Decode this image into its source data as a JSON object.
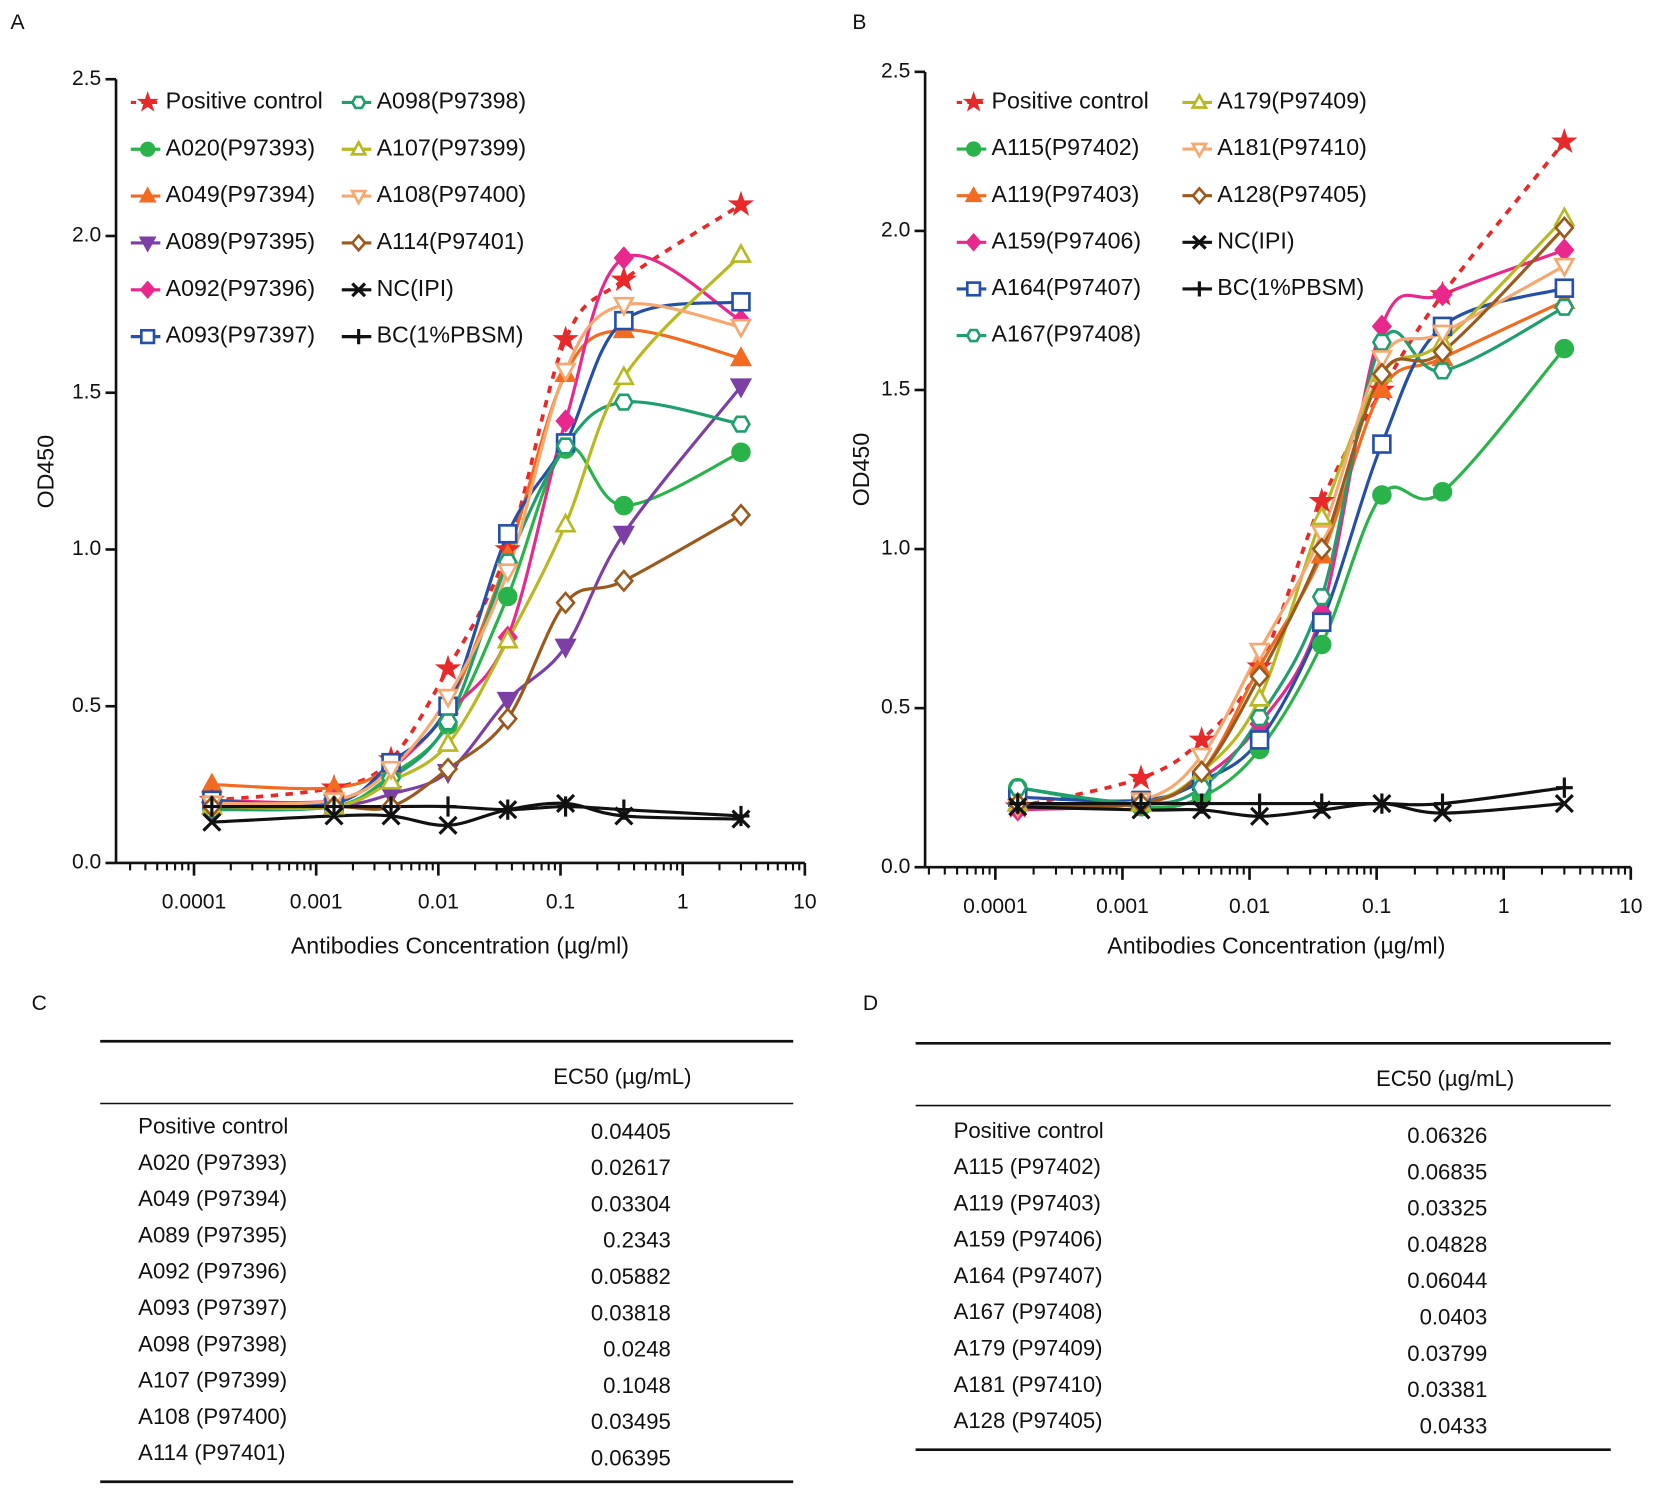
{
  "chart_data": [
    {
      "panel": "A",
      "type": "scatter",
      "xlabel": "Antibodies Concentration (µg/ml)",
      "ylabel": "OD450",
      "xscale": "log",
      "xlim": [
        2.3e-05,
        10
      ],
      "xticks": [
        0.0001,
        0.001,
        0.01,
        0.1,
        1,
        10
      ],
      "ylim": [
        0,
        2.5
      ],
      "yticks": [
        {
          "value": 0,
          "label": "0.0"
        },
        0.5,
        {
          "value": 1,
          "label": "1.0"
        },
        1.5,
        {
          "value": 2,
          "label": "2.0"
        },
        2.5
      ],
      "x": [
        0.00014,
        0.0014,
        0.0041,
        0.012,
        0.037,
        0.11,
        0.33,
        3
      ],
      "series": [
        {
          "name": "Positive control",
          "color": "#e8292a",
          "marker": "star",
          "filled": true,
          "dash": true,
          "values": [
            0.2,
            0.24,
            0.33,
            0.62,
            1.0,
            1.67,
            1.86,
            2.1
          ]
        },
        {
          "name": "A020(P97393)",
          "color": "#2ab34a",
          "marker": "circle",
          "filled": true,
          "values": [
            0.18,
            0.18,
            0.28,
            0.44,
            0.85,
            1.32,
            1.14,
            1.31
          ]
        },
        {
          "name": "A049(P97394)",
          "color": "#f26b21",
          "marker": "triangle",
          "filled": true,
          "values": [
            0.25,
            0.24,
            0.31,
            0.5,
            0.98,
            1.56,
            1.7,
            1.61
          ]
        },
        {
          "name": "A089(P97395)",
          "color": "#7b3fa5",
          "marker": "triangle-down",
          "filled": true,
          "values": [
            0.17,
            0.18,
            0.22,
            0.29,
            0.52,
            0.69,
            1.05,
            1.52
          ]
        },
        {
          "name": "A092(P97396)",
          "color": "#e8288c",
          "marker": "diamond",
          "filled": true,
          "values": [
            0.2,
            0.2,
            0.3,
            0.48,
            0.72,
            1.41,
            1.93,
            1.73
          ]
        },
        {
          "name": "A093(P97397)",
          "color": "#2450a8",
          "marker": "square",
          "filled": false,
          "values": [
            0.2,
            0.19,
            0.32,
            0.5,
            1.05,
            1.34,
            1.73,
            1.79
          ]
        },
        {
          "name": "A098(P97398)",
          "color": "#1f9e6e",
          "marker": "hexagon",
          "filled": false,
          "values": [
            0.17,
            0.18,
            0.27,
            0.45,
            0.96,
            1.33,
            1.47,
            1.4
          ]
        },
        {
          "name": "A107(P97399)",
          "color": "#b8b821",
          "marker": "triangle",
          "filled": false,
          "values": [
            0.18,
            0.18,
            0.26,
            0.38,
            0.71,
            1.08,
            1.55,
            1.94
          ]
        },
        {
          "name": "A108(P97400)",
          "color": "#f5a870",
          "marker": "triangle-down",
          "filled": false,
          "values": [
            0.19,
            0.2,
            0.3,
            0.53,
            0.93,
            1.57,
            1.78,
            1.71
          ]
        },
        {
          "name": "A114(P97401)",
          "color": "#9b5a1d",
          "marker": "diamond",
          "filled": false,
          "values": [
            0.18,
            0.18,
            0.18,
            0.3,
            0.46,
            0.83,
            0.9,
            1.11
          ]
        },
        {
          "name": "NC(IPI)",
          "color": "#111111",
          "marker": "x",
          "filled": true,
          "values": [
            0.13,
            0.15,
            0.15,
            0.12,
            0.17,
            0.19,
            0.15,
            0.14
          ]
        },
        {
          "name": "BC(1%PBSM)",
          "color": "#111111",
          "marker": "plus",
          "filled": true,
          "values": [
            0.18,
            0.18,
            0.18,
            0.18,
            0.17,
            0.18,
            0.17,
            0.15
          ]
        }
      ]
    },
    {
      "panel": "B",
      "type": "scatter",
      "xlabel": "Antibodies Concentration (µg/ml)",
      "ylabel": "OD450",
      "xscale": "log",
      "xlim": [
        2.8e-05,
        10
      ],
      "xticks": [
        0.0001,
        0.001,
        0.01,
        0.1,
        1,
        10
      ],
      "ylim": [
        0,
        2.5
      ],
      "yticks": [
        {
          "value": 0,
          "label": "0.0"
        },
        0.5,
        {
          "value": 1,
          "label": "1.0"
        },
        1.5,
        {
          "value": 2,
          "label": "2.0"
        },
        2.5
      ],
      "x": [
        0.00015,
        0.0014,
        0.0042,
        0.012,
        0.037,
        0.11,
        0.33,
        3
      ],
      "series": [
        {
          "name": "Positive control",
          "color": "#e8292a",
          "marker": "star",
          "filled": true,
          "dash": true,
          "values": [
            0.19,
            0.28,
            0.4,
            0.63,
            1.15,
            1.5,
            1.8,
            2.28
          ]
        },
        {
          "name": "A115(P97402)",
          "color": "#2ab34a",
          "marker": "circle",
          "filled": true,
          "values": [
            0.25,
            0.19,
            0.22,
            0.37,
            0.7,
            1.17,
            1.18,
            1.63
          ]
        },
        {
          "name": "A119(P97403)",
          "color": "#f26b21",
          "marker": "triangle",
          "filled": true,
          "values": [
            0.2,
            0.2,
            0.3,
            0.63,
            0.98,
            1.5,
            1.6,
            1.78
          ]
        },
        {
          "name": "A159(P97406)",
          "color": "#e8288c",
          "marker": "diamond",
          "filled": true,
          "values": [
            0.18,
            0.2,
            0.28,
            0.45,
            0.8,
            1.7,
            1.8,
            1.94
          ]
        },
        {
          "name": "A164(P97407)",
          "color": "#2450a8",
          "marker": "square",
          "filled": false,
          "values": [
            0.22,
            0.21,
            0.27,
            0.4,
            0.77,
            1.33,
            1.7,
            1.82
          ]
        },
        {
          "name": "A167(P97408)",
          "color": "#1f9e6e",
          "marker": "hexagon",
          "filled": false,
          "values": [
            0.25,
            0.2,
            0.25,
            0.47,
            0.85,
            1.65,
            1.56,
            1.76
          ]
        },
        {
          "name": "A179(P97409)",
          "color": "#b8b821",
          "marker": "triangle",
          "filled": false,
          "values": [
            0.2,
            0.2,
            0.3,
            0.53,
            1.1,
            1.55,
            1.65,
            2.04
          ]
        },
        {
          "name": "A181(P97410)",
          "color": "#f5a870",
          "marker": "triangle-down",
          "filled": false,
          "values": [
            0.19,
            0.21,
            0.35,
            0.68,
            1.05,
            1.6,
            1.68,
            1.89
          ]
        },
        {
          "name": "A128(P97405)",
          "color": "#9b5a1d",
          "marker": "diamond",
          "filled": false,
          "values": [
            0.2,
            0.2,
            0.3,
            0.6,
            1.0,
            1.55,
            1.62,
            2.01
          ]
        },
        {
          "name": "NC(IPI)",
          "color": "#111111",
          "marker": "x",
          "filled": true,
          "values": [
            0.19,
            0.18,
            0.18,
            0.16,
            0.18,
            0.2,
            0.17,
            0.2
          ]
        },
        {
          "name": "BC(1%PBSM)",
          "color": "#111111",
          "marker": "plus",
          "filled": true,
          "values": [
            0.2,
            0.2,
            0.2,
            0.2,
            0.2,
            0.2,
            0.2,
            0.25
          ]
        }
      ]
    }
  ],
  "tables": [
    {
      "panel": "C",
      "column_header": "EC50 (µg/mL)",
      "rows": [
        [
          "Positive control",
          0.04405
        ],
        [
          "A020 (P97393)",
          0.02617
        ],
        [
          "A049 (P97394)",
          0.03304
        ],
        [
          "A089 (P97395)",
          0.2343
        ],
        [
          "A092 (P97396)",
          0.05882
        ],
        [
          "A093 (P97397)",
          0.03818
        ],
        [
          "A098 (P97398)",
          0.0248
        ],
        [
          "A107 (P97399)",
          0.1048
        ],
        [
          "A108 (P97400)",
          0.03495
        ],
        [
          "A114 (P97401)",
          0.06395
        ]
      ]
    },
    {
      "panel": "D",
      "column_header": "EC50 (µg/mL)",
      "rows": [
        [
          "Positive control",
          0.06326
        ],
        [
          "A115 (P97402)",
          0.06835
        ],
        [
          "A119 (P97403)",
          0.03325
        ],
        [
          "A159 (P97406)",
          0.04828
        ],
        [
          "A164 (P97407)",
          0.06044
        ],
        [
          "A167 (P97408)",
          0.0403
        ],
        [
          "A179 (P97409)",
          0.03799
        ],
        [
          "A181 (P97410)",
          0.03381
        ],
        [
          "A128 (P97405)",
          0.0433
        ]
      ]
    }
  ]
}
